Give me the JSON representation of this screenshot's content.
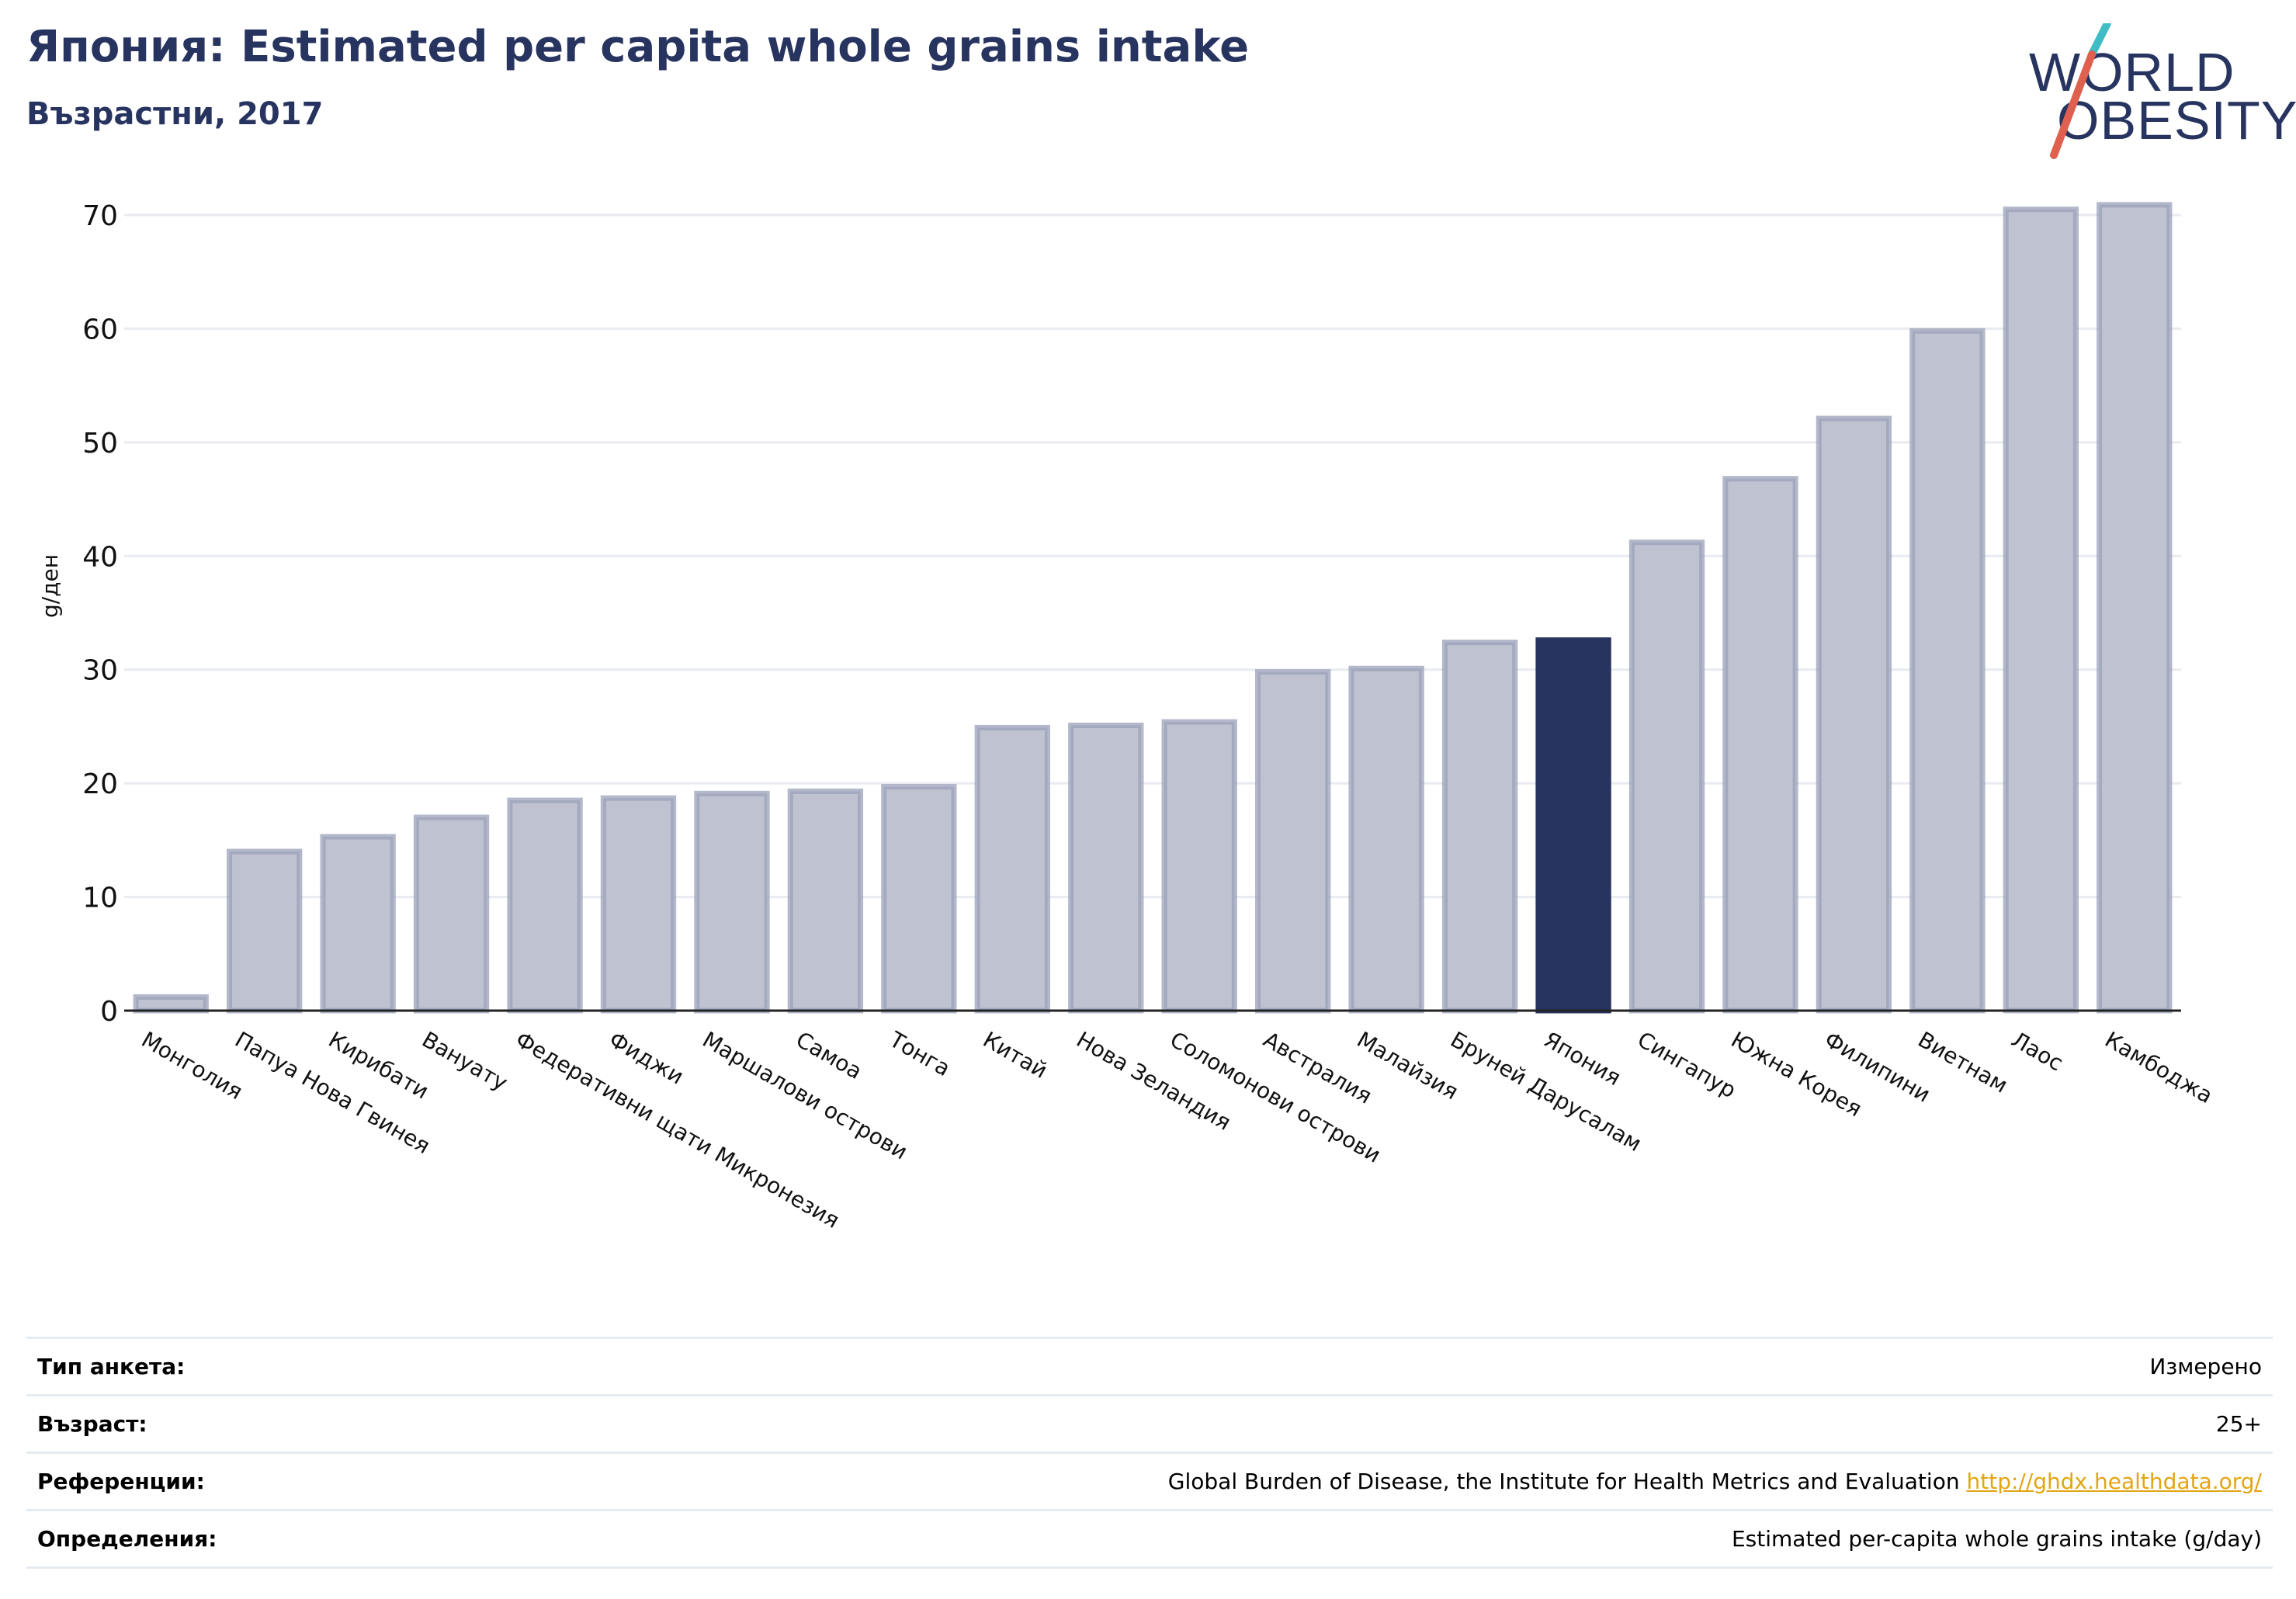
{
  "header": {
    "title": "Япония: Estimated per capita whole grains intake",
    "subtitle": "Възрастни, 2017"
  },
  "logo": {
    "line1": "WORLD",
    "line2": "OBESITY",
    "brand_color": "#283460",
    "accent_teal": "#3fbcc4",
    "accent_red": "#e0604f"
  },
  "colors": {
    "bar": "#bfc2d0",
    "bar_stroke": "#9aa0b8",
    "highlight": "#283460",
    "grid": "#e8ebf0"
  },
  "chart_data": {
    "type": "bar",
    "ylabel": "g/ден",
    "ylim": [
      0,
      70
    ],
    "yticks": [
      0,
      10,
      20,
      30,
      40,
      50,
      60,
      70
    ],
    "highlight_category": "Япония",
    "categories": [
      "Монголия",
      "Папуа Нова Гвинея",
      "Кирибати",
      "Вануату",
      "Федеративни щати Микронезия",
      "Фиджи",
      "Маршалови острови",
      "Самоа",
      "Тонга",
      "Китай",
      "Нова Зеландия",
      "Соломонови острови",
      "Австралия",
      "Малайзия",
      "Бруней Дарусалам",
      "Япония",
      "Сингапур",
      "Южна Корея",
      "Филипини",
      "Виетнам",
      "Лаос",
      "Камбоджа"
    ],
    "values": [
      1.2,
      14.0,
      15.3,
      17.0,
      18.5,
      18.7,
      19.1,
      19.3,
      19.7,
      24.9,
      25.1,
      25.4,
      29.8,
      30.1,
      32.4,
      32.6,
      41.2,
      46.8,
      52.1,
      59.8,
      70.5,
      70.9
    ]
  },
  "info": {
    "survey_type_label": "Тип анкета:",
    "survey_type_value": "Измерено",
    "age_label": "Възраст:",
    "age_value": "25+",
    "references_label": "Референции:",
    "references_text": "Global Burden of Disease, the Institute for Health Metrics and Evaluation",
    "references_link": "http://ghdx.healthdata.org/",
    "definitions_label": "Определения:",
    "definitions_value": "Estimated per-capita whole grains intake (g/day)"
  }
}
